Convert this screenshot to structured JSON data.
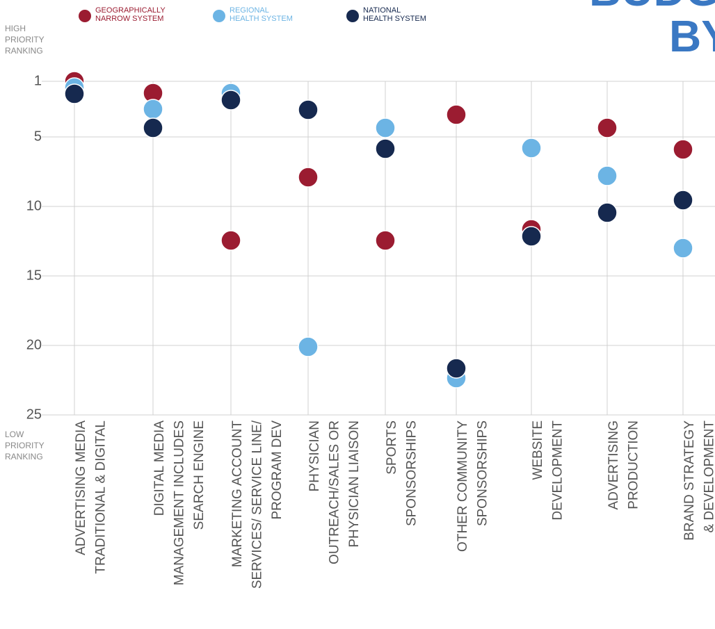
{
  "chart_data": {
    "type": "dot",
    "title": [
      "BUDG",
      "BY"
    ],
    "y_top_label": [
      "HIGH",
      "PRIORITY",
      "RANKING"
    ],
    "y_bottom_label": [
      "LOW",
      "PRIORITY",
      "RANKING"
    ],
    "categories": [
      [
        "ADVERTISING MEDIA",
        "TRADITIONAL & DIGITAL"
      ],
      [
        "DIGITAL MEDIA",
        "MANAGEMENT INCLUDES",
        "SEARCH ENGINE"
      ],
      [
        "MARKETING ACCOUNT",
        "SERVICES/ SERVICE  LINE/",
        "PROGRAM DEV"
      ],
      [
        "PHYSICIAN",
        "OUTREACH/SALES OR",
        "PHYSICIAN LIAISON"
      ],
      [
        "SPORTS",
        "SPONSORSHIPS"
      ],
      [
        "OTHER COMMUNITY",
        "SPONSORSHIPS"
      ],
      [
        "WEBSITE",
        "DEVELOPMENT"
      ],
      [
        "ADVERTISING",
        "PRODUCTION"
      ],
      [
        "BRAND STRATEGY",
        "& DEVELOPMENT"
      ]
    ],
    "series": [
      {
        "name": [
          "GEOGRAPHICALLY",
          "NARROW SYSTEM"
        ],
        "color": "#9b1c31",
        "values": [
          1.0,
          1.85,
          12.45,
          7.9,
          12.45,
          3.4,
          11.65,
          4.35,
          5.9
        ]
      },
      {
        "name": [
          "REGIONAL",
          "HEALTH SYSTEM"
        ],
        "color": "#6cb4e4",
        "values": [
          1.45,
          3.0,
          1.85,
          20.1,
          4.35,
          22.35,
          5.8,
          7.8,
          13.0
        ]
      },
      {
        "name": [
          "NATIONAL",
          "HEALTH SYSTEM"
        ],
        "color": "#16294f",
        "values": [
          1.9,
          4.35,
          2.35,
          3.05,
          5.85,
          21.65,
          12.15,
          10.45,
          9.55
        ]
      }
    ],
    "ylim": [
      1,
      25
    ],
    "yticks": [
      1,
      5,
      10,
      15,
      20,
      25
    ],
    "y_inverted": true,
    "grid": true
  }
}
